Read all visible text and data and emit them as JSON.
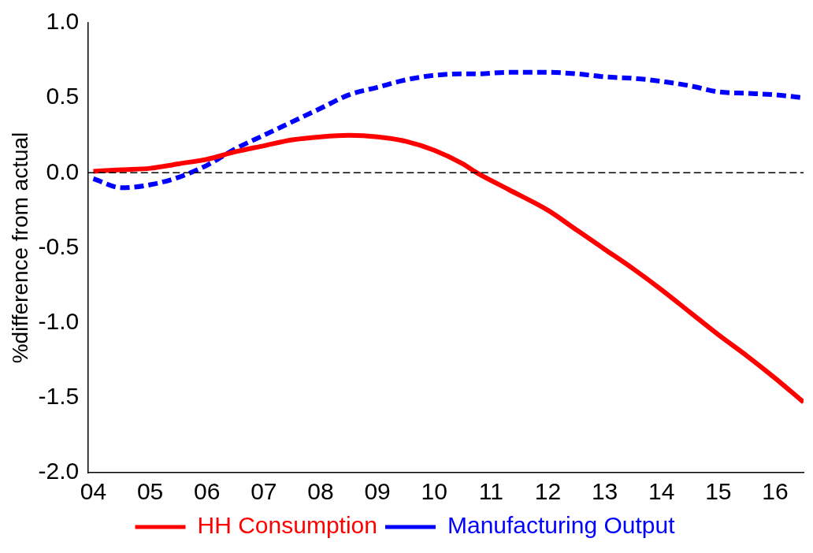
{
  "chart_data": {
    "type": "line",
    "ylabel": "%difference from actual",
    "x": [
      4,
      4.5,
      5,
      5.5,
      6,
      6.5,
      7,
      7.5,
      8,
      8.5,
      9,
      9.5,
      10,
      10.5,
      10.75,
      11.3,
      12,
      12.5,
      13,
      13.5,
      14,
      14.5,
      15,
      15.5,
      16,
      16.5
    ],
    "series": [
      {
        "name": "HH Consumption",
        "color": "#ff0000",
        "line_style": "solid",
        "values": [
          0.01,
          0.02,
          0.03,
          0.06,
          0.09,
          0.14,
          0.18,
          0.22,
          0.24,
          0.25,
          0.24,
          0.21,
          0.15,
          0.06,
          0.0,
          -0.11,
          -0.25,
          -0.38,
          -0.51,
          -0.64,
          -0.78,
          -0.93,
          -1.08,
          -1.22,
          -1.37,
          -1.53
        ]
      },
      {
        "name": "Manufacturing Output",
        "color": "#0000ff",
        "line_style": "dashed",
        "values": [
          -0.04,
          -0.1,
          -0.08,
          -0.03,
          0.05,
          0.16,
          0.25,
          0.34,
          0.43,
          0.52,
          0.57,
          0.62,
          0.65,
          0.66,
          0.66,
          0.67,
          0.67,
          0.66,
          0.64,
          0.63,
          0.61,
          0.58,
          0.54,
          0.53,
          0.52,
          0.5
        ]
      }
    ],
    "xlim": [
      3.9,
      16.5
    ],
    "xticks": [
      {
        "value": 4,
        "label": "04"
      },
      {
        "value": 5,
        "label": "05"
      },
      {
        "value": 6,
        "label": "06"
      },
      {
        "value": 7,
        "label": "07"
      },
      {
        "value": 8,
        "label": "08"
      },
      {
        "value": 9,
        "label": "09"
      },
      {
        "value": 10,
        "label": "10"
      },
      {
        "value": 11,
        "label": "11"
      },
      {
        "value": 12,
        "label": "12"
      },
      {
        "value": 13,
        "label": "13"
      },
      {
        "value": 14,
        "label": "14"
      },
      {
        "value": 15,
        "label": "15"
      },
      {
        "value": 16,
        "label": "16"
      }
    ],
    "ylim": [
      -2,
      1
    ],
    "yticks": [
      {
        "value": -2,
        "label": "-2.0"
      },
      {
        "value": -1.5,
        "label": "-1.5"
      },
      {
        "value": -1,
        "label": "-1.0"
      },
      {
        "value": -0.5,
        "label": "-0.5"
      },
      {
        "value": 0,
        "label": "0.0"
      },
      {
        "value": 0.5,
        "label": "0.5"
      },
      {
        "value": 1,
        "label": "1.0"
      }
    ],
    "ref_lines": [
      {
        "axis": "y",
        "value": 0,
        "color": "#000000",
        "line_style": "dashed"
      }
    ],
    "grid": false,
    "legend": "bottom",
    "marker": "none"
  }
}
